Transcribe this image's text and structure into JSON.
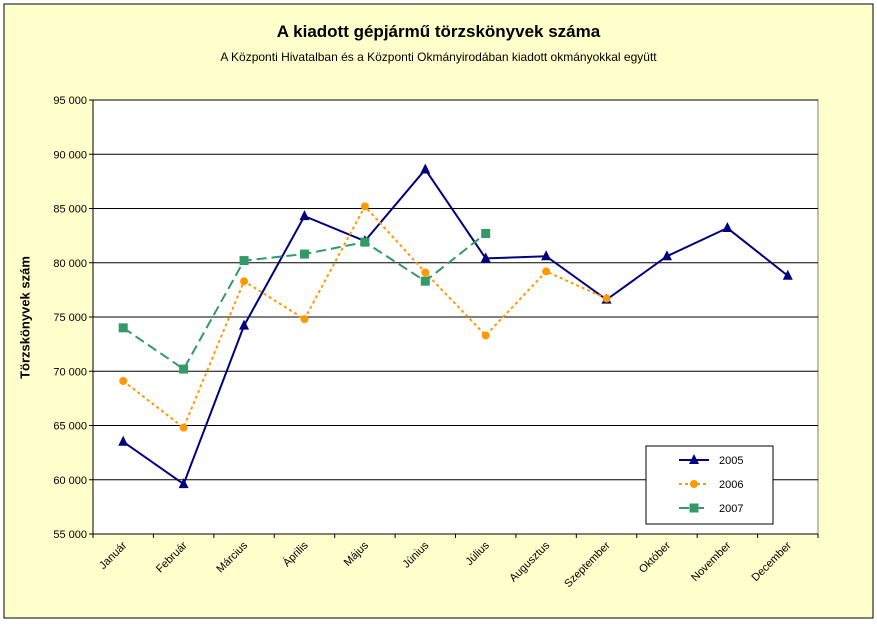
{
  "chart_data": {
    "type": "line",
    "title": "A  kiadott gépjármű  törzskönyvek száma",
    "subtitle": "A Központi Hivatalban és a Központi Okmányirodában kiadott okmányokkal együtt",
    "ylabel": "Törzskönyvek szám",
    "xlabel": "",
    "ylim": [
      55000,
      95000
    ],
    "yticks": [
      55000,
      60000,
      65000,
      70000,
      75000,
      80000,
      85000,
      90000,
      95000
    ],
    "ytick_labels": [
      "55 000",
      "60 000",
      "65 000",
      "70 000",
      "75 000",
      "80 000",
      "85 000",
      "90 000",
      "95 000"
    ],
    "categories": [
      "Január",
      "Február",
      "Március",
      "Április",
      "Május",
      "Június",
      "Július",
      "Augusztus",
      "Szeptember",
      "Október",
      "November",
      "December"
    ],
    "grid": true,
    "legend": "bottom-right",
    "series": [
      {
        "name": "2005",
        "color": "#000080",
        "marker": "triangle",
        "dash": "solid",
        "values": [
          63500,
          59600,
          74200,
          84300,
          82000,
          88600,
          80400,
          80600,
          76600,
          80600,
          83200,
          78800
        ]
      },
      {
        "name": "2006",
        "color": "#FF9900",
        "marker": "circle",
        "dash": "dotted",
        "values": [
          69100,
          64800,
          78300,
          74800,
          85200,
          79100,
          73300,
          79200,
          76700,
          null,
          null,
          null
        ]
      },
      {
        "name": "2007",
        "color": "#339966",
        "marker": "square",
        "dash": "dashed",
        "values": [
          74000,
          70200,
          80200,
          80800,
          81900,
          78300,
          82700,
          null,
          null,
          null,
          null,
          null
        ]
      }
    ]
  },
  "colors": {
    "background": "#FFFFCC",
    "plot_background": "#FFFFFF",
    "grid": "#000000"
  }
}
